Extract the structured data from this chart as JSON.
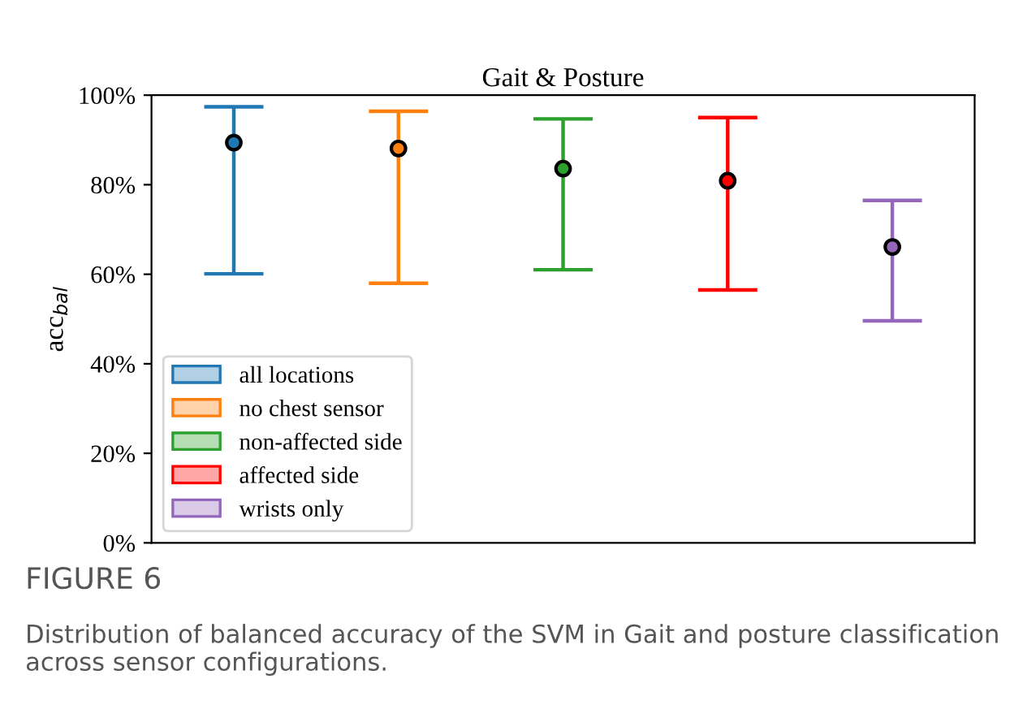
{
  "chart_data": {
    "type": "scatter",
    "title": "Gait & Posture",
    "ylabel": "acc$_{bal}$",
    "categories": [
      null,
      null,
      null,
      null,
      null
    ],
    "series": [
      {
        "name": "all locations",
        "color": "#1f77b4",
        "values": [
          89.4,
          null,
          null,
          null,
          null
        ],
        "errors": [
          [
            60.1,
            97.4
          ],
          null,
          null,
          null,
          null
        ]
      },
      {
        "name": "no chest sensor",
        "color": "#ff7f0e",
        "values": [
          null,
          88.1,
          null,
          null,
          null
        ],
        "errors": [
          null,
          [
            58.0,
            96.4
          ],
          null,
          null,
          null
        ]
      },
      {
        "name": "non-affected side",
        "color": "#2ca02c",
        "values": [
          null,
          null,
          83.6,
          null,
          null
        ],
        "errors": [
          null,
          null,
          [
            61.0,
            94.7
          ],
          null,
          null
        ]
      },
      {
        "name": "affected side",
        "color": "#ff0000",
        "values": [
          null,
          null,
          null,
          80.9,
          null
        ],
        "errors": [
          null,
          null,
          null,
          [
            56.5,
            95.0
          ],
          null
        ]
      },
      {
        "name": "wrists only",
        "color": "#9467bd",
        "values": [
          null,
          null,
          null,
          null,
          66.1
        ],
        "errors": [
          null,
          null,
          null,
          null,
          [
            49.6,
            76.5
          ]
        ]
      }
    ],
    "ylim": [
      0,
      100
    ],
    "yticks": [
      {
        "value": 0,
        "label": "0%"
      },
      {
        "value": 20,
        "label": "20%"
      },
      {
        "value": 40,
        "label": "40%"
      },
      {
        "value": 60,
        "label": "60%"
      },
      {
        "value": 80,
        "label": "80%"
      },
      {
        "value": 100,
        "label": "100%"
      }
    ],
    "tick_labels": "y",
    "grid": false,
    "legend": "bottom left",
    "marker": "circle",
    "annotations": [
      "FIGURE 6",
      "Distribution of balanced accuracy of the SVM in Gait and posture classification across sensor configurations."
    ]
  }
}
